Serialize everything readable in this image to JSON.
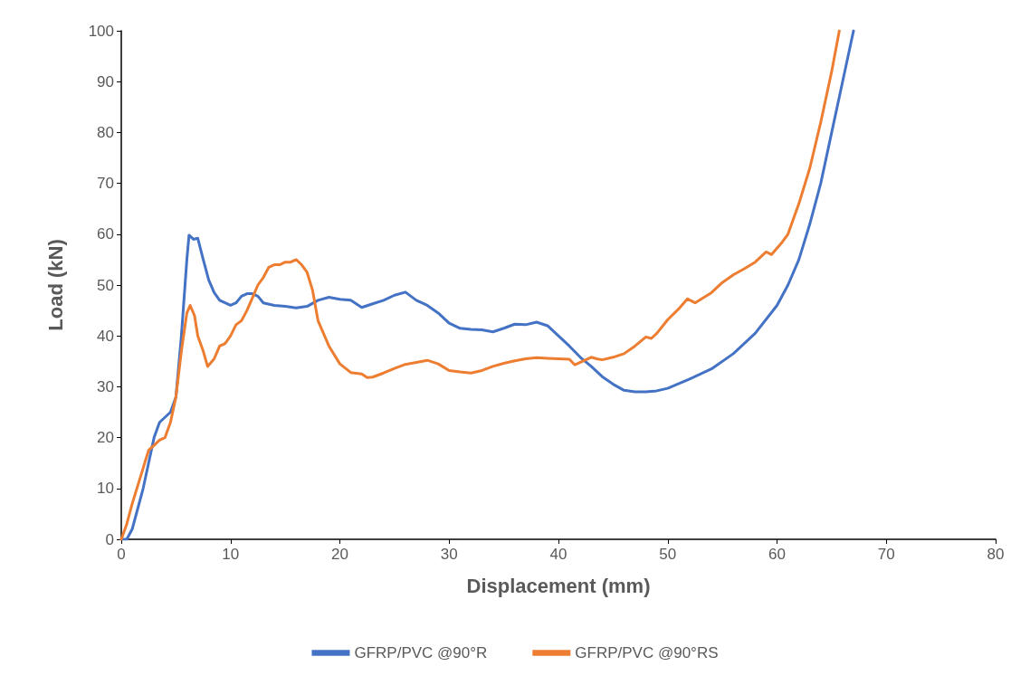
{
  "chart_data": {
    "type": "line",
    "xlabel": "Displacement (mm)",
    "ylabel": "Load (kN)",
    "xlim": [
      0,
      80
    ],
    "xticks": [
      0,
      10,
      20,
      30,
      40,
      50,
      60,
      70,
      80
    ],
    "ylim": [
      0,
      100
    ],
    "yticks": [
      0,
      10,
      20,
      30,
      40,
      50,
      60,
      70,
      80,
      90,
      100
    ],
    "grid": false,
    "legend": "bottom",
    "marker": "none",
    "line_style": "solid",
    "series": [
      {
        "name": "GFRP/PVC @90°R",
        "color": "#4472c4",
        "x": [
          0,
          0.5,
          1,
          2,
          3,
          3.5,
          4.5,
          5,
          5.5,
          6,
          6.2,
          6.6,
          7,
          7.5,
          8,
          8.5,
          9,
          9.5,
          10,
          10.5,
          11,
          11.5,
          12,
          12.5,
          13,
          14,
          15,
          16,
          17,
          18,
          19,
          20,
          21,
          22,
          23,
          24,
          25,
          26,
          27,
          28,
          29,
          30,
          31,
          32,
          33,
          34,
          35,
          36,
          37,
          38,
          39,
          40,
          41,
          42,
          43,
          44,
          45,
          46,
          47,
          48,
          49,
          50,
          52,
          54,
          56,
          58,
          60,
          61,
          62,
          63,
          64,
          65,
          66,
          67
        ],
        "values": [
          0,
          0,
          2,
          10,
          20,
          23,
          25,
          28,
          40,
          55,
          59.8,
          59,
          59.2,
          55,
          51,
          48.5,
          47,
          46.5,
          46,
          46.5,
          47.8,
          48.3,
          48.3,
          47.8,
          46.5,
          46,
          45.8,
          45.5,
          45.8,
          47,
          47.6,
          47.2,
          47,
          45.6,
          46.3,
          47,
          48,
          48.6,
          47,
          46,
          44.5,
          42.5,
          41.5,
          41.3,
          41.2,
          40.8,
          41.5,
          42.3,
          42.2,
          42.7,
          42,
          40,
          38,
          35.8,
          34,
          32,
          30.5,
          29.3,
          29,
          29,
          29.2,
          29.7,
          31.5,
          33.5,
          36.5,
          40.5,
          46,
          50,
          55,
          62,
          70,
          80,
          90,
          100
        ]
      },
      {
        "name": "GFRP/PVC @90°RS",
        "color": "#ed7d31",
        "x": [
          0,
          0.5,
          1,
          2,
          2.5,
          3,
          3.5,
          4,
          4.5,
          5,
          5.5,
          6,
          6.3,
          6.7,
          7,
          7.5,
          7.9,
          8.5,
          9,
          9.5,
          10,
          10.5,
          11,
          11.5,
          12,
          12.5,
          13,
          13.5,
          14,
          14.5,
          15,
          15.5,
          16,
          16.5,
          17,
          17.5,
          18,
          19,
          20,
          21,
          22,
          22.5,
          23,
          24,
          25,
          26,
          27,
          28,
          29,
          30,
          31,
          32,
          33,
          34,
          35,
          36,
          37,
          38,
          39,
          40,
          41,
          41.5,
          42.5,
          43,
          43.5,
          44,
          45,
          46,
          47,
          48,
          48.5,
          49,
          50,
          51,
          51.8,
          52.5,
          54,
          55,
          56,
          57,
          58,
          59,
          59.5,
          60.5,
          61,
          62,
          63,
          64,
          65,
          65.7
        ],
        "values": [
          0,
          3,
          7,
          14,
          17.5,
          18.5,
          19.5,
          20,
          23,
          28,
          37,
          44.5,
          46,
          44,
          40,
          37,
          34,
          35.5,
          38,
          38.5,
          40,
          42.2,
          43,
          45,
          47.5,
          50,
          51.5,
          53.5,
          54,
          54,
          54.5,
          54.5,
          55,
          54,
          52.5,
          49,
          43,
          38,
          34.5,
          32.8,
          32.5,
          31.8,
          31.9,
          32.7,
          33.6,
          34.4,
          34.8,
          35.2,
          34.5,
          33.2,
          32.9,
          32.7,
          33.2,
          34,
          34.6,
          35.1,
          35.5,
          35.7,
          35.6,
          35.5,
          35.4,
          34.3,
          35.3,
          35.8,
          35.5,
          35.3,
          35.8,
          36.5,
          38,
          39.8,
          39.5,
          40.5,
          43.2,
          45.3,
          47.3,
          46.5,
          48.5,
          50.5,
          52,
          53.2,
          54.5,
          56.5,
          56,
          58.5,
          60,
          66,
          73,
          82,
          92,
          100
        ]
      }
    ]
  }
}
